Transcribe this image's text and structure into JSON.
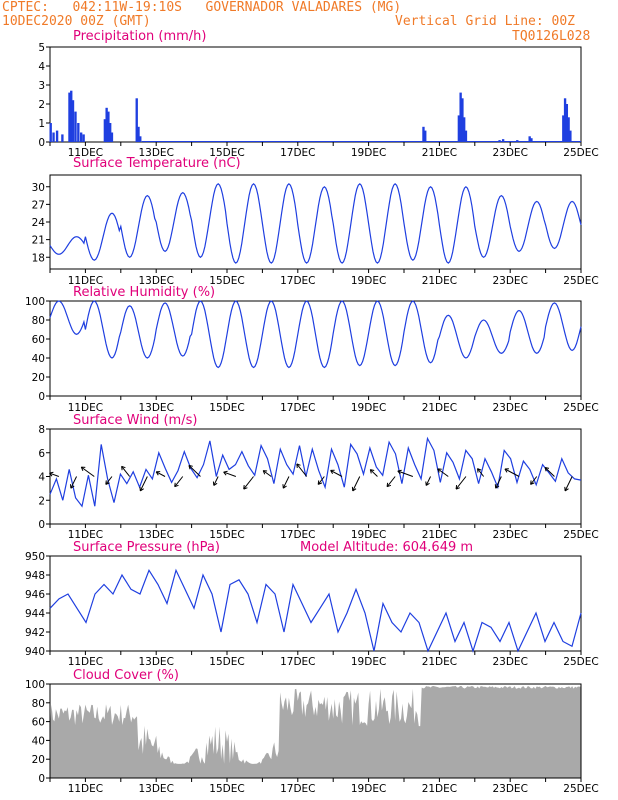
{
  "header": {
    "line1_left": "CPTEC:   042:11W-19:10S   GOVERNADOR VALADARES (MG)",
    "line2_left": "10DEC2020 00Z (GMT)",
    "line2_right": "Vertical Grid Line: 00Z",
    "line3_right": "TQ0126L028",
    "model_altitude": "Model Altitude: 604.649 m"
  },
  "colors": {
    "title": "#e0007a",
    "header": "#f07a28",
    "series": "#1f3fe0",
    "cloud": "#a9a9a9",
    "wind_vector": "#000000"
  },
  "x_tick_labels": [
    "11DEC",
    "13DEC",
    "15DEC",
    "17DEC",
    "19DEC",
    "21DEC",
    "23DEC",
    "25DEC"
  ],
  "chart_data": [
    {
      "type": "bar",
      "title": "Precipitation (mm/h)",
      "ylim": [
        0,
        5
      ],
      "y_ticks": [
        0,
        1,
        2,
        3,
        4,
        5
      ],
      "xlim": [
        "10DEC 00Z",
        "25DEC 00Z"
      ],
      "series": [
        {
          "values_by_hour": [
            {
              "t": 0.02,
              "v": 1.0
            },
            {
              "t": 0.1,
              "v": 0.5
            },
            {
              "t": 0.2,
              "v": 0.6
            },
            {
              "t": 0.35,
              "v": 0.4
            },
            {
              "t": 0.55,
              "v": 2.6
            },
            {
              "t": 0.6,
              "v": 2.7
            },
            {
              "t": 0.65,
              "v": 2.2
            },
            {
              "t": 0.72,
              "v": 1.6
            },
            {
              "t": 0.8,
              "v": 1.0
            },
            {
              "t": 0.88,
              "v": 0.5
            },
            {
              "t": 0.95,
              "v": 0.4
            },
            {
              "t": 1.55,
              "v": 1.2
            },
            {
              "t": 1.6,
              "v": 1.8
            },
            {
              "t": 1.65,
              "v": 1.6
            },
            {
              "t": 1.7,
              "v": 1.0
            },
            {
              "t": 1.75,
              "v": 0.5
            },
            {
              "t": 2.45,
              "v": 2.3
            },
            {
              "t": 2.5,
              "v": 0.8
            },
            {
              "t": 2.55,
              "v": 0.3
            },
            {
              "t": 10.55,
              "v": 0.8
            },
            {
              "t": 10.6,
              "v": 0.6
            },
            {
              "t": 11.55,
              "v": 1.4
            },
            {
              "t": 11.6,
              "v": 2.6
            },
            {
              "t": 11.65,
              "v": 2.3
            },
            {
              "t": 11.7,
              "v": 1.3
            },
            {
              "t": 11.75,
              "v": 0.6
            },
            {
              "t": 12.7,
              "v": 0.1
            },
            {
              "t": 12.8,
              "v": 0.15
            },
            {
              "t": 13.2,
              "v": 0.1
            },
            {
              "t": 13.55,
              "v": 0.3
            },
            {
              "t": 13.6,
              "v": 0.2
            },
            {
              "t": 14.5,
              "v": 1.4
            },
            {
              "t": 14.55,
              "v": 2.3
            },
            {
              "t": 14.6,
              "v": 2.0
            },
            {
              "t": 14.65,
              "v": 1.3
            },
            {
              "t": 14.7,
              "v": 0.6
            }
          ]
        }
      ]
    },
    {
      "type": "line",
      "title": "Surface Temperature (nC)",
      "ylim": [
        16,
        32
      ],
      "y_ticks": [
        18,
        21,
        24,
        27,
        30
      ],
      "series": [
        {
          "min": [
            18.5,
            17.5,
            18,
            19,
            18,
            17,
            17,
            17,
            17,
            17,
            17.5,
            17,
            18,
            19,
            19.5
          ],
          "max": [
            21.5,
            25.5,
            28.5,
            29,
            30.5,
            30.5,
            30.5,
            30,
            30.5,
            30.5,
            30,
            30,
            28.5,
            27.5,
            27.5
          ]
        }
      ]
    },
    {
      "type": "line",
      "title": "Relative Humidity (%)",
      "ylim": [
        0,
        100
      ],
      "y_ticks": [
        0,
        20,
        40,
        60,
        80,
        100
      ],
      "series": [
        {
          "min": [
            65,
            40,
            40,
            42,
            30,
            30,
            30,
            30,
            32,
            32,
            35,
            40,
            45,
            45,
            48
          ],
          "max": [
            100,
            100,
            95,
            98,
            100,
            100,
            100,
            100,
            100,
            100,
            100,
            85,
            80,
            90,
            98
          ]
        }
      ]
    },
    {
      "type": "line",
      "title": "Surface Wind (m/s)",
      "ylim": [
        0,
        8
      ],
      "y_ticks": [
        0,
        2,
        4,
        6,
        8
      ],
      "series": [
        {
          "values": [
            2.5,
            3.8,
            2.0,
            4.6,
            2.2,
            1.5,
            4.1,
            1.5,
            6.7,
            3.8,
            1.8,
            4.2,
            3.4,
            4.4,
            3.1,
            4.6,
            3.8,
            6.0,
            4.7,
            3.5,
            4.5,
            6.1,
            4.7,
            3.9,
            5.0,
            7.0,
            4.0,
            5.8,
            4.6,
            5.0,
            6.1,
            4.9,
            4.1,
            6.6,
            5.5,
            3.4,
            6.3,
            5.0,
            4.2,
            6.6,
            4.0,
            6.3,
            4.5,
            3.1,
            6.3,
            5.0,
            3.1,
            6.7,
            5.9,
            4.2,
            6.4,
            4.8,
            4.1,
            6.9,
            5.9,
            3.4,
            6.4,
            5.0,
            3.8,
            7.2,
            6.2,
            3.5,
            6.0,
            5.2,
            3.8,
            6.2,
            5.5,
            3.4,
            5.5,
            4.4,
            3.1,
            6.2,
            5.5,
            3.5,
            5.3,
            4.6,
            3.3,
            5.0,
            4.3,
            3.6,
            5.5,
            4.3,
            3.8,
            3.7
          ]
        }
      ]
    },
    {
      "type": "line",
      "title": "Surface Pressure (hPa)",
      "ylim": [
        940,
        950
      ],
      "y_ticks": [
        940,
        942,
        944,
        946,
        948,
        950
      ],
      "series": [
        {
          "values": [
            944.5,
            945.5,
            946,
            944.5,
            943,
            946,
            947,
            946,
            948,
            946.5,
            946,
            948.5,
            947,
            945,
            948.5,
            946.5,
            944.5,
            948,
            946,
            942,
            947,
            947.5,
            946,
            943,
            947,
            946,
            942,
            947,
            945,
            943,
            944.5,
            946,
            942,
            944,
            946.5,
            944,
            940,
            945,
            943,
            942,
            944,
            943,
            940,
            942,
            944,
            941,
            943,
            940,
            943,
            942.5,
            941,
            943,
            940,
            942,
            944,
            941,
            943,
            941,
            940.5,
            944
          ]
        }
      ]
    },
    {
      "type": "area",
      "title": "Cloud Cover (%)",
      "ylim": [
        0,
        100
      ],
      "y_ticks": [
        0,
        20,
        40,
        60,
        80,
        100
      ]
    }
  ]
}
